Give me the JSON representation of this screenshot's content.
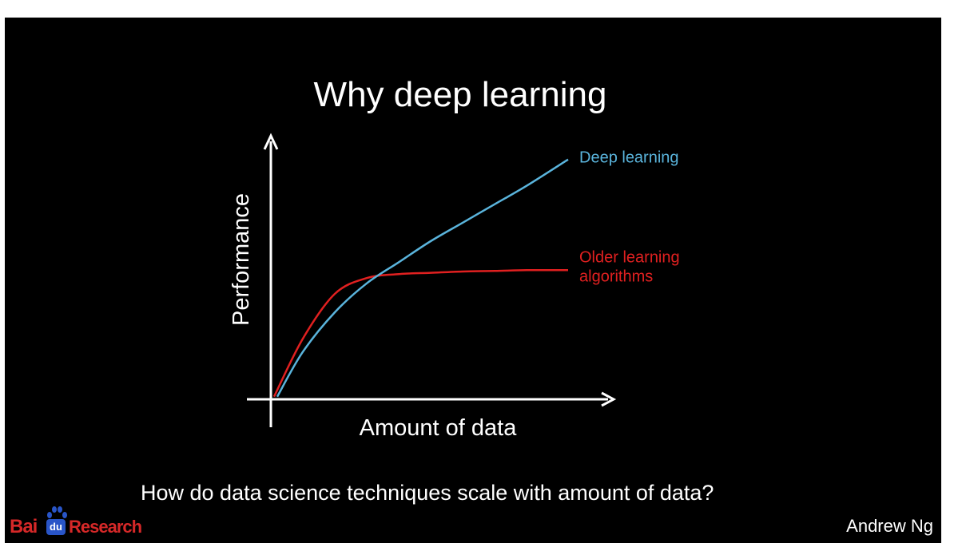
{
  "slide": {
    "title": "Why deep learning",
    "caption": "How do data science techniques scale with amount of data?",
    "author": "Andrew Ng",
    "logo": {
      "brand": "Bai",
      "badge": "du",
      "suffix": "Research"
    },
    "background": "#000000"
  },
  "chart_data": {
    "type": "line",
    "title": "Why deep learning",
    "xlabel": "Amount of data",
    "ylabel": "Performance",
    "xlim": [
      0,
      10
    ],
    "ylim": [
      0,
      10
    ],
    "grid": false,
    "axis_ticks": false,
    "series": [
      {
        "name": "Deep learning",
        "color": "#5ab4dc",
        "x": [
          0.2,
          1,
          2,
          3,
          4,
          5,
          6,
          7,
          8,
          9.3
        ],
        "y": [
          0.1,
          1.8,
          3.3,
          4.4,
          5.2,
          6.0,
          6.7,
          7.4,
          8.1,
          9.1
        ]
      },
      {
        "name": "Older learning algorithms",
        "color": "#e02020",
        "x": [
          0.1,
          1,
          2,
          3,
          4,
          5,
          6,
          7,
          8,
          9.3
        ],
        "y": [
          0.1,
          2.3,
          4.0,
          4.6,
          4.75,
          4.8,
          4.85,
          4.87,
          4.9,
          4.9
        ]
      }
    ],
    "legend": [
      {
        "label": "Deep learning",
        "color": "#5ab4dc"
      },
      {
        "label": "Older learning algorithms",
        "color": "#e02020"
      }
    ]
  }
}
